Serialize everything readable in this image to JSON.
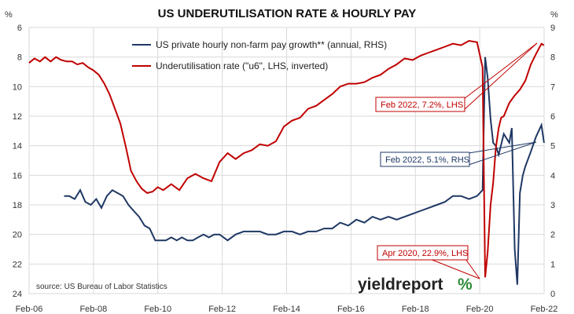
{
  "chart_data": {
    "type": "line",
    "title": "US UNDERUTILISATION RATE & HOURLY PAY",
    "left_axis": {
      "unit_label": "",
      "ticks": [
        6,
        8,
        10,
        12,
        14,
        16,
        18,
        20,
        22,
        24
      ],
      "range": [
        6,
        24
      ],
      "inverted": true
    },
    "right_axis": {
      "unit_label": "%",
      "ticks": [
        0,
        1,
        2,
        3,
        4,
        5,
        6,
        7,
        8,
        9
      ],
      "range": [
        0,
        9
      ]
    },
    "left_unit_symbol": "%",
    "x_ticks": [
      "Feb-06",
      "Feb-08",
      "Feb-10",
      "Feb-12",
      "Feb-14",
      "Feb-16",
      "Feb-18",
      "Feb-20",
      "Feb-22"
    ],
    "x_range": [
      2006.083,
      2022.083
    ],
    "grid": true,
    "legend_placement": "top-center",
    "series": [
      {
        "name": "US private hourly non-farm pay growth** (annual, RHS)",
        "axis": "right",
        "color": "#1f3864",
        "x": [
          2007.17,
          2007.33,
          2007.5,
          2007.67,
          2007.83,
          2008.0,
          2008.17,
          2008.33,
          2008.5,
          2008.67,
          2008.83,
          2009.0,
          2009.17,
          2009.33,
          2009.5,
          2009.67,
          2009.83,
          2010.0,
          2010.17,
          2010.33,
          2010.5,
          2010.67,
          2010.83,
          2011.0,
          2011.17,
          2011.33,
          2011.5,
          2011.67,
          2011.83,
          2012.0,
          2012.25,
          2012.5,
          2012.75,
          2013.0,
          2013.25,
          2013.5,
          2013.75,
          2014.0,
          2014.25,
          2014.5,
          2014.75,
          2015.0,
          2015.25,
          2015.5,
          2015.75,
          2016.0,
          2016.25,
          2016.5,
          2016.75,
          2017.0,
          2017.25,
          2017.5,
          2017.75,
          2018.0,
          2018.25,
          2018.5,
          2018.75,
          2019.0,
          2019.25,
          2019.5,
          2019.75,
          2020.0,
          2020.17,
          2020.25,
          2020.33,
          2020.42,
          2020.5,
          2020.58,
          2020.67,
          2020.83,
          2021.0,
          2021.08,
          2021.17,
          2021.25,
          2021.33,
          2021.42,
          2021.5,
          2021.67,
          2021.83,
          2022.0,
          2022.08
        ],
        "values": [
          3.3,
          3.3,
          3.2,
          3.5,
          3.1,
          3.0,
          3.2,
          2.9,
          3.3,
          3.5,
          3.4,
          3.3,
          3.0,
          2.8,
          2.6,
          2.3,
          2.2,
          1.8,
          1.8,
          1.8,
          1.9,
          1.8,
          1.9,
          1.8,
          1.8,
          1.9,
          2.0,
          1.9,
          2.0,
          2.0,
          1.8,
          2.0,
          2.1,
          2.1,
          2.1,
          2.0,
          2.0,
          2.1,
          2.1,
          2.0,
          2.1,
          2.1,
          2.2,
          2.2,
          2.4,
          2.3,
          2.5,
          2.4,
          2.6,
          2.5,
          2.6,
          2.5,
          2.6,
          2.7,
          2.8,
          2.9,
          3.0,
          3.1,
          3.3,
          3.3,
          3.2,
          3.3,
          3.5,
          8.0,
          7.3,
          5.9,
          5.1,
          5.0,
          4.7,
          5.4,
          5.1,
          5.6,
          1.5,
          0.3,
          3.4,
          4.0,
          4.3,
          4.8,
          5.3,
          5.7,
          5.1
        ]
      },
      {
        "name": "Underutilisation rate (\"u6\", LHS, inverted)",
        "axis": "left",
        "color": "#c00000",
        "x": [
          2006.08,
          2006.25,
          2006.42,
          2006.58,
          2006.75,
          2006.92,
          2007.08,
          2007.25,
          2007.42,
          2007.58,
          2007.75,
          2007.92,
          2008.08,
          2008.25,
          2008.42,
          2008.58,
          2008.75,
          2008.92,
          2009.08,
          2009.25,
          2009.42,
          2009.58,
          2009.75,
          2009.92,
          2010.08,
          2010.25,
          2010.5,
          2010.75,
          2011.0,
          2011.25,
          2011.5,
          2011.75,
          2012.0,
          2012.25,
          2012.5,
          2012.75,
          2013.0,
          2013.25,
          2013.5,
          2013.75,
          2014.0,
          2014.25,
          2014.5,
          2014.75,
          2015.0,
          2015.25,
          2015.5,
          2015.75,
          2016.0,
          2016.25,
          2016.5,
          2016.75,
          2017.0,
          2017.25,
          2017.5,
          2017.75,
          2018.0,
          2018.25,
          2018.5,
          2018.75,
          2019.0,
          2019.25,
          2019.5,
          2019.75,
          2020.0,
          2020.17,
          2020.25,
          2020.33,
          2020.42,
          2020.5,
          2020.58,
          2020.67,
          2020.75,
          2020.83,
          2021.0,
          2021.17,
          2021.33,
          2021.5,
          2021.67,
          2021.83,
          2022.0,
          2022.08
        ],
        "values": [
          8.4,
          8.1,
          8.3,
          8.0,
          8.3,
          8.0,
          8.2,
          8.3,
          8.3,
          8.5,
          8.4,
          8.7,
          8.9,
          9.2,
          9.8,
          10.5,
          11.5,
          12.5,
          14.0,
          15.7,
          16.4,
          16.9,
          17.2,
          17.1,
          16.8,
          17.0,
          16.6,
          17.0,
          16.2,
          15.9,
          16.2,
          16.4,
          15.1,
          14.5,
          14.9,
          14.5,
          14.3,
          13.9,
          14.0,
          13.7,
          12.7,
          12.3,
          12.1,
          11.5,
          11.3,
          10.9,
          10.5,
          10.0,
          9.8,
          9.8,
          9.7,
          9.4,
          9.2,
          8.8,
          8.5,
          8.1,
          8.2,
          7.9,
          7.7,
          7.5,
          7.3,
          7.1,
          7.2,
          6.9,
          7.0,
          8.7,
          22.9,
          21.2,
          18.0,
          16.5,
          14.2,
          12.8,
          12.1,
          12.0,
          11.1,
          10.6,
          10.2,
          9.6,
          8.5,
          7.8,
          7.1,
          7.2
        ]
      }
    ],
    "annotations": [
      {
        "text": "Feb 2022, 7.2%, LHS",
        "color": "#c00000"
      },
      {
        "text": "Feb 2022, 5.1%, RHS",
        "color": "#1f3864"
      },
      {
        "text": "Apr 2020, 22.9%, LHS",
        "color": "#c00000"
      }
    ],
    "source": "source: US Bureau of Labor Statistics",
    "logo": {
      "word": "yieldreport",
      "symbol": "%"
    }
  }
}
